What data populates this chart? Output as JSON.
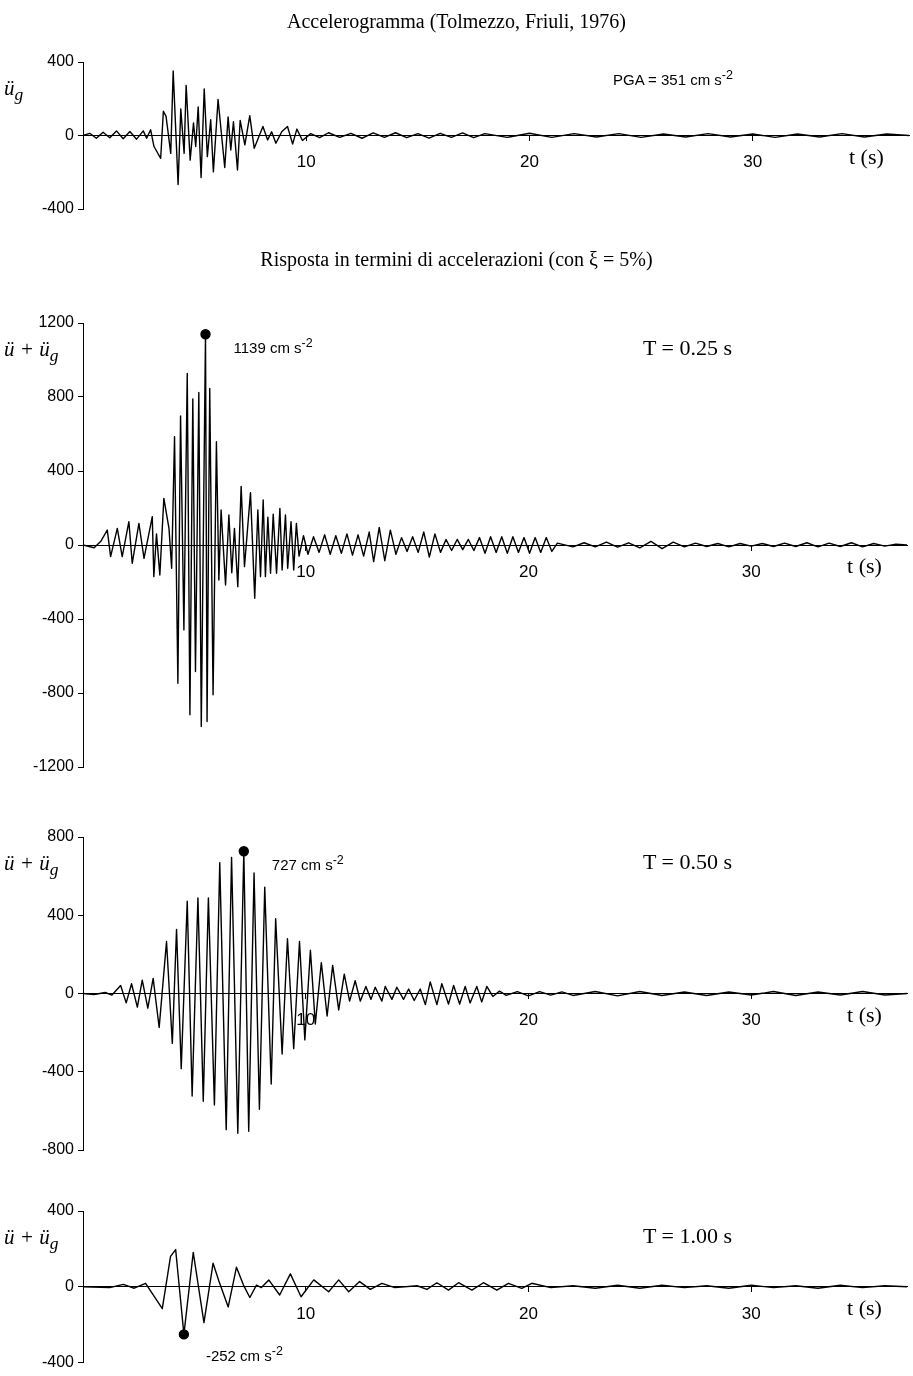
{
  "chart_data": [
    {
      "type": "line",
      "title": "Accelerogramma (Tolmezzo, Friuli, 1976)",
      "xlabel": "t (s)",
      "ylabel": "ü$_{g}$",
      "xlim": [
        0,
        37
      ],
      "xticks": [
        10,
        20,
        30
      ],
      "ylim": [
        -400,
        400
      ],
      "yticks": [
        -400,
        0,
        400
      ],
      "marker": "none",
      "annotations": [
        "PGA = 351 cm s$^{-2}$"
      ],
      "series": [
        {
          "type": "line",
          "color": "#000000",
          "x": [
            0,
            0.3,
            0.6,
            0.9,
            1.2,
            1.5,
            1.8,
            2.1,
            2.4,
            2.7,
            2.85,
            3.03,
            3.18,
            3.48,
            3.6,
            3.72,
            3.93,
            4.04,
            4.26,
            4.38,
            4.53,
            4.62,
            4.8,
            4.95,
            5.05,
            5.16,
            5.29,
            5.43,
            5.57,
            5.72,
            5.84,
            6.05,
            6.35,
            6.5,
            6.62,
            6.74,
            6.92,
            7.04,
            7.25,
            7.47,
            7.67,
            8.06,
            8.27,
            8.45,
            8.64,
            8.9,
            9.16,
            9.39,
            9.58,
            9.83,
            10.2,
            10.6,
            11,
            11.5,
            12,
            12.5,
            13,
            13.5,
            14,
            14.5,
            15,
            15.5,
            16,
            16.5,
            17,
            17.5,
            18,
            19,
            20,
            21,
            22,
            23,
            24,
            25,
            26,
            27,
            28,
            29,
            30,
            31,
            32,
            33,
            34,
            35,
            36,
            37
          ],
          "values": [
            0,
            12,
            -15,
            18,
            -12,
            25,
            -18,
            22,
            -20,
            25,
            -15,
            31,
            -60,
            -124,
            132,
            104,
            -97,
            351,
            -267,
            145,
            -97,
            273,
            -134,
            68,
            -60,
            156,
            -229,
            254,
            -115,
            86,
            -198,
            196,
            -174,
            101,
            -79,
            75,
            -188,
            82,
            -51,
            108,
            -70,
            49,
            -24,
            20,
            -42,
            20,
            49,
            -46,
            35,
            -27,
            10,
            -12,
            15,
            -10,
            12,
            -15,
            14,
            -10,
            15,
            -12,
            10,
            -14,
            12,
            -10,
            14,
            -12,
            10,
            -10,
            12,
            -10,
            10,
            -8,
            10,
            -10,
            8,
            -8,
            10,
            -8,
            8,
            -10,
            8,
            -8,
            10,
            -8,
            8,
            0
          ]
        }
      ]
    },
    {
      "type": "line",
      "title": "Risposta in termini di accelerazioni (con ξ = 5%)",
      "xlabel": "t (s)",
      "ylabel": "ü + ü$_{g}$",
      "xlim": [
        0,
        37
      ],
      "xticks": [
        10,
        20,
        30
      ],
      "ylim": [
        -1200,
        1200
      ],
      "yticks": [
        -1200,
        -800,
        -400,
        0,
        400,
        800,
        1200
      ],
      "marker": "none",
      "annotations": [
        {
          "text": "1139 cm s$^{-2}$",
          "x": 5.5,
          "y": 1139
        },
        "T = 0.25 s"
      ],
      "series": [
        {
          "type": "line",
          "color": "#000000",
          "x": [
            0,
            0.5,
            0.8,
            1.09,
            1.24,
            1.54,
            1.76,
            2.06,
            2.21,
            2.51,
            2.74,
            3.11,
            3.18,
            3.3,
            3.45,
            3.63,
            3.86,
            3.98,
            4.11,
            4.26,
            4.38,
            4.53,
            4.68,
            4.8,
            4.93,
            5.05,
            5.2,
            5.31,
            5.5,
            5.57,
            5.69,
            5.84,
            5.99,
            6.1,
            6.2,
            6.4,
            6.55,
            6.68,
            6.8,
            6.95,
            7.1,
            7.25,
            7.52,
            7.71,
            7.85,
            7.97,
            8.09,
            8.19,
            8.3,
            8.42,
            8.54,
            8.69,
            8.84,
            8.94,
            9.09,
            9.19,
            9.34,
            9.46,
            9.58,
            9.7,
            9.9,
            10.1,
            10.35,
            10.6,
            10.85,
            11.1,
            11.35,
            11.6,
            11.85,
            12.1,
            12.35,
            12.6,
            12.85,
            13.05,
            13.3,
            13.55,
            13.8,
            14.05,
            14.3,
            14.55,
            14.8,
            15.05,
            15.3,
            15.55,
            15.8,
            16.05,
            16.3,
            16.55,
            16.8,
            17.05,
            17.3,
            17.55,
            17.8,
            18.05,
            18.3,
            18.55,
            18.8,
            19.05,
            19.3,
            19.55,
            19.8,
            20.05,
            20.3,
            20.55,
            20.8,
            21.05,
            21.3,
            22,
            22.5,
            23,
            23.5,
            24,
            24.5,
            25,
            25.5,
            26,
            26.5,
            27,
            27.5,
            28,
            28.5,
            29,
            29.5,
            30,
            30.5,
            31,
            31.5,
            32,
            32.5,
            33,
            33.5,
            34,
            34.5,
            35,
            35.5,
            36,
            36.5,
            37
          ],
          "values": [
            0,
            -15,
            20,
            81,
            -63,
            90,
            -63,
            126,
            -99,
            117,
            -72,
            153,
            -171,
            60,
            -162,
            252,
            90,
            -126,
            585,
            -747,
            697,
            -459,
            927,
            -918,
            790,
            -684,
            824,
            -981,
            1139,
            -954,
            846,
            -810,
            558,
            -189,
            189,
            -216,
            162,
            -150,
            90,
            -225,
            317,
            -117,
            283,
            -288,
            189,
            -171,
            243,
            -171,
            150,
            -153,
            167,
            -153,
            198,
            -135,
            162,
            -126,
            126,
            -135,
            117,
            -60,
            50,
            -50,
            45,
            -40,
            55,
            -50,
            50,
            -45,
            60,
            -55,
            55,
            -60,
            70,
            -90,
            95,
            -85,
            80,
            -50,
            40,
            -35,
            45,
            -40,
            70,
            -65,
            60,
            -40,
            30,
            -30,
            30,
            -25,
            30,
            -30,
            40,
            -45,
            45,
            -40,
            45,
            -45,
            45,
            -40,
            40,
            -45,
            40,
            -40,
            40,
            -35,
            10,
            -10,
            12,
            -10,
            15,
            -12,
            12,
            -15,
            20,
            -20,
            15,
            -10,
            10,
            -8,
            8,
            -10,
            8,
            -6,
            8,
            -8,
            10,
            -8,
            12,
            -10,
            10,
            -8,
            12,
            -10,
            8,
            -6,
            5,
            0
          ]
        },
        {
          "type": "scatter",
          "color": "#000000",
          "marker": "circle",
          "x": [
            5.5
          ],
          "values": [
            1139
          ]
        }
      ]
    },
    {
      "type": "line",
      "xlabel": "t (s)",
      "ylabel": "ü + ü$_{g}$",
      "xlim": [
        0,
        37
      ],
      "xticks": [
        10,
        20,
        30
      ],
      "ylim": [
        -800,
        800
      ],
      "yticks": [
        -800,
        -400,
        0,
        400,
        800
      ],
      "marker": "none",
      "annotations": [
        {
          "text": "727 cm s$^{-2}$",
          "x": 7.22,
          "y": 727
        },
        "T = 0.50 s"
      ],
      "series": [
        {
          "type": "line",
          "color": "#000000",
          "x": [
            0,
            0.5,
            1.0,
            1.3,
            1.69,
            1.94,
            2.18,
            2.44,
            2.66,
            2.91,
            3.15,
            3.42,
            3.75,
            4.01,
            4.2,
            4.41,
            4.68,
            4.9,
            5.16,
            5.4,
            5.63,
            5.9,
            6.14,
            6.43,
            6.67,
            6.95,
            7.22,
            7.44,
            7.68,
            7.92,
            8.16,
            8.45,
            8.65,
            8.94,
            9.18,
            9.46,
            9.72,
            9.96,
            10.21,
            10.43,
            10.7,
            10.96,
            11.21,
            11.48,
            11.73,
            11.97,
            12.22,
            12.45,
            12.7,
            12.93,
            13.12,
            13.42,
            13.57,
            13.87,
            14.09,
            14.39,
            14.62,
            14.87,
            15.14,
            15.37,
            15.59,
            15.89,
            16.11,
            16.41,
            16.64,
            16.91,
            17.16,
            17.38,
            17.68,
            17.9,
            18.13,
            18.4,
            18.7,
            19,
            19.5,
            20,
            20.5,
            21,
            21.5,
            22,
            23,
            24,
            25,
            26,
            27,
            28,
            29,
            30,
            31,
            32,
            33,
            34,
            35,
            36,
            37
          ],
          "values": [
            0,
            -5,
            5,
            -8,
            41,
            -48,
            50,
            -70,
            68,
            -75,
            77,
            -174,
            266,
            -255,
            328,
            -384,
            472,
            -524,
            489,
            -551,
            489,
            -570,
            669,
            -696,
            696,
            -714,
            727,
            -704,
            616,
            -592,
            544,
            -463,
            382,
            -309,
            280,
            -282,
            266,
            -237,
            221,
            -156,
            158,
            -115,
            144,
            -84,
            99,
            -39,
            65,
            -39,
            36,
            -30,
            32,
            -39,
            36,
            -30,
            32,
            -30,
            23,
            -36,
            23,
            -57,
            59,
            -57,
            50,
            -54,
            41,
            -54,
            36,
            -48,
            36,
            -43,
            36,
            -15,
            12,
            -10,
            10,
            -12,
            10,
            -8,
            8,
            -10,
            10,
            -12,
            10,
            -10,
            8,
            -10,
            8,
            -8,
            10,
            -10,
            8,
            -8,
            10,
            -8,
            0
          ]
        },
        {
          "type": "scatter",
          "color": "#000000",
          "marker": "circle",
          "x": [
            7.22
          ],
          "values": [
            727
          ]
        }
      ]
    },
    {
      "type": "line",
      "xlabel": "t (s)",
      "ylabel": "ü + ü$_{g}$",
      "xlim": [
        0,
        37
      ],
      "xticks": [
        10,
        20,
        30
      ],
      "ylim": [
        -400,
        400
      ],
      "yticks": [
        -400,
        0,
        400
      ],
      "marker": "none",
      "annotations": [
        "T = 1.00 s",
        {
          "text": "-252 cm s$^{-2}$",
          "x": 4.53,
          "y": -252
        }
      ],
      "series": [
        {
          "type": "line",
          "color": "#000000",
          "x": [
            0,
            1.2,
            1.81,
            2.3,
            2.81,
            3.56,
            3.93,
            4.16,
            4.53,
            4.95,
            5.43,
            5.84,
            6.1,
            6.52,
            6.89,
            7.2,
            7.49,
            7.79,
            8.0,
            8.34,
            8.83,
            9.31,
            9.79,
            10.36,
            11.03,
            11.48,
            11.93,
            12.42,
            12.9,
            13.42,
            14,
            15,
            15.44,
            15.89,
            16.41,
            16.86,
            17.46,
            17.98,
            18.58,
            19.1,
            19.7,
            20.15,
            21,
            22,
            23,
            24,
            25,
            26,
            27,
            28,
            29,
            30,
            31,
            32,
            33,
            34,
            35,
            36,
            37
          ],
          "values": [
            0,
            -5,
            12,
            -8,
            18,
            -116,
            160,
            196,
            -252,
            181,
            -190,
            124,
            30,
            -107,
            103,
            10,
            -57,
            9,
            -5,
            36,
            -44,
            68,
            -53,
            36,
            -27,
            36,
            -27,
            27,
            -14,
            18,
            -5,
            5,
            -14,
            21,
            -18,
            21,
            -18,
            21,
            -18,
            18,
            -9,
            18,
            -5,
            5,
            -8,
            8,
            -8,
            8,
            -5,
            5,
            -8,
            8,
            -5,
            5,
            -8,
            8,
            -5,
            5,
            0
          ]
        },
        {
          "type": "scatter",
          "color": "#000000",
          "marker": "circle",
          "x": [
            4.53
          ],
          "values": [
            -252
          ]
        }
      ]
    }
  ]
}
